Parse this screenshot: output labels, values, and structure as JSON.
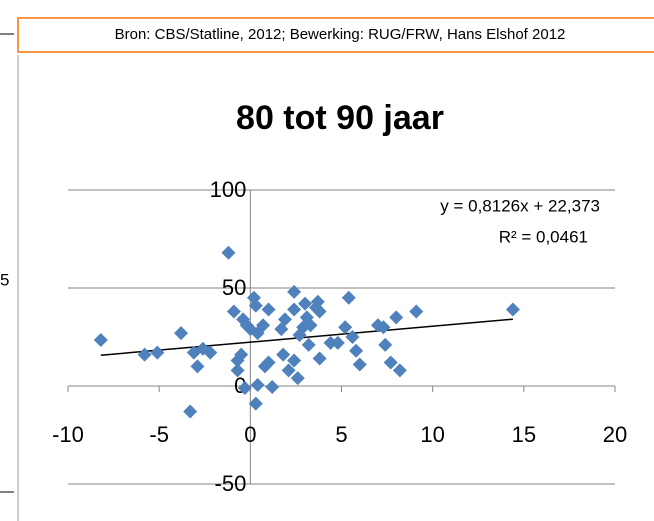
{
  "header": {
    "source": "Bron: CBS/Statline, 2012; Bewerking: RUG/FRW, Hans Elshof 2012"
  },
  "side_text": "5",
  "chart_data": {
    "type": "scatter",
    "title": "80 tot 90 jaar",
    "x": [
      -8.2,
      -5.8,
      -5.1,
      -3.8,
      -3.3,
      -3.1,
      -2.9,
      -2.6,
      -2.2,
      -1.2,
      -0.9,
      -0.7,
      -0.7,
      -0.5,
      -0.3,
      -0.4,
      -0.2,
      0,
      0.2,
      0.3,
      0.3,
      0.4,
      0.4,
      0.7,
      0.8,
      1,
      1.2,
      1,
      1.7,
      1.9,
      1.8,
      2.1,
      2.4,
      2.4,
      2.4,
      2.6,
      2.7,
      2.9,
      3,
      3.1,
      3.3,
      3.2,
      3.6,
      3.7,
      3.8,
      3.8,
      4.4,
      4.8,
      5.2,
      5.4,
      5.6,
      5.8,
      6,
      7,
      7.3,
      7.4,
      7.7,
      8,
      8.2,
      9.1,
      14.4
    ],
    "values": [
      23.5,
      16,
      17,
      27,
      -13,
      17,
      10,
      19,
      17,
      68,
      38,
      13,
      8,
      16,
      -1,
      34,
      31,
      29,
      45,
      -9,
      41,
      0.5,
      27,
      31,
      10,
      12,
      -0.5,
      39,
      29,
      34,
      16,
      8,
      48,
      39,
      13,
      4,
      26,
      30,
      42,
      35,
      31,
      21,
      40,
      43,
      14,
      38,
      22,
      22,
      30,
      45,
      25,
      18,
      11,
      31,
      30,
      21,
      12,
      35,
      8,
      38,
      39
    ],
    "color": "#4f81bd",
    "xlim": [
      -10,
      20
    ],
    "xticks": [
      -10,
      -5,
      0,
      5,
      10,
      15,
      20
    ],
    "ylim": [
      -50,
      100
    ],
    "yticks": [
      -50,
      0,
      50,
      100
    ],
    "grid": true,
    "trendline": {
      "slope": 0.8126,
      "intercept": 22.373,
      "equation": "y = 0,8126x + 22,373",
      "r2": "R² = 0,0461"
    }
  }
}
